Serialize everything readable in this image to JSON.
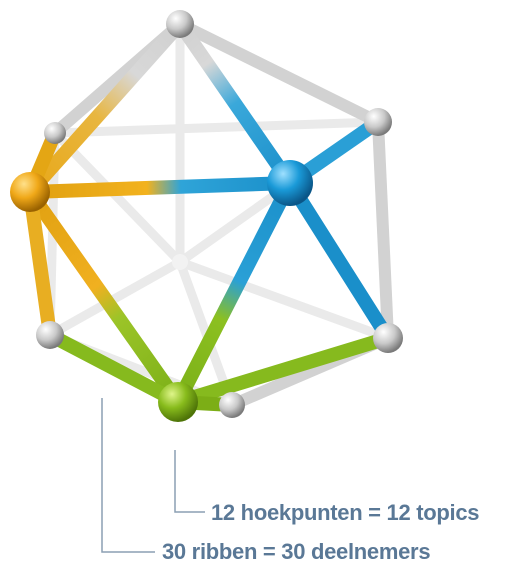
{
  "callouts": {
    "vertices": "12 hoekpunten  = 12 topics",
    "edges": "30 ribben = 30 deelnemers"
  },
  "colors": {
    "label_text": "#5a7896",
    "leader_line": "#8c9fb4",
    "node_gray": "#c9c9c9",
    "node_orange": "#f0a818",
    "node_blue": "#1a9ad8",
    "node_green": "#88bc1c",
    "edge_back": "#e8e8e8",
    "edge_front": "#d4d4d4"
  }
}
